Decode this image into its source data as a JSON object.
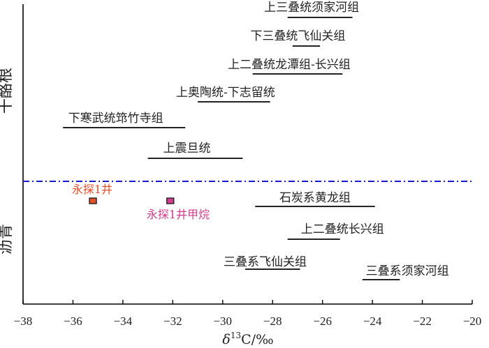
{
  "chart_data": {
    "type": "range",
    "xlabel": "δ13C/‰",
    "xlim": [
      -38,
      -20
    ],
    "xticks": [
      -38,
      -36,
      -34,
      -32,
      -30,
      -28,
      -26,
      -24,
      -22,
      -20
    ],
    "groups": [
      {
        "name": "干酪根",
        "intervals": [
          {
            "label": "上三叠统须家河组",
            "xmin": -27.4,
            "xmax": -24.8
          },
          {
            "label": "下三叠统飞仙关组",
            "xmin": -27.2,
            "xmax": -26.1
          },
          {
            "label": "上二叠统龙潭组-长兴组",
            "xmin": -28.8,
            "xmax": -25.2
          },
          {
            "label": "上奥陶统-下志留统",
            "xmin": -31.0,
            "xmax": -28.1
          },
          {
            "label": "下寒武统筇竹寺组",
            "xmin": -36.4,
            "xmax": -31.5
          },
          {
            "label": "上震旦统",
            "xmin": -33.0,
            "xmax": -29.2
          }
        ]
      },
      {
        "name": "沥青",
        "intervals": [
          {
            "label": "石炭系黄龙组",
            "xmin": -28.7,
            "xmax": -23.9
          },
          {
            "label": "上二叠统长兴组",
            "xmin": -27.4,
            "xmax": -25.3
          },
          {
            "label": "三叠系飞仙关组",
            "xmin": -29.1,
            "xmax": -26.9
          },
          {
            "label": "三叠系须家河组",
            "xmin": -24.4,
            "xmax": -22.9
          }
        ]
      }
    ],
    "points": [
      {
        "label": "永探1井",
        "x": -35.2,
        "color": "#e8502a"
      },
      {
        "label": "永探1井甲烷",
        "x": -32.1,
        "color": "#d23c8c"
      }
    ],
    "divider_color": "#1a1acc"
  }
}
